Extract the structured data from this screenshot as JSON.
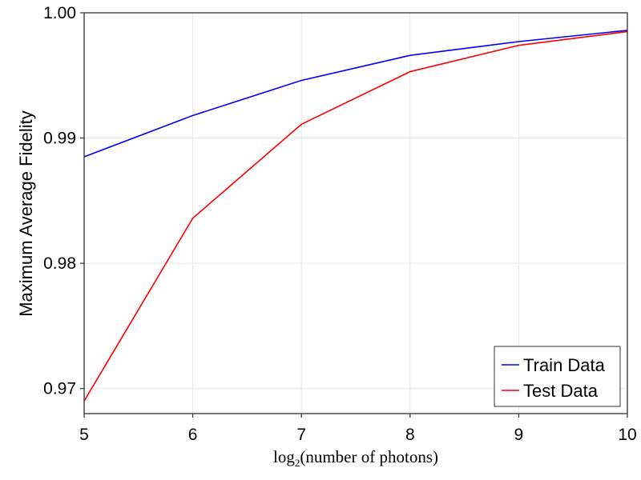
{
  "chart_data": {
    "type": "line",
    "x": [
      5,
      6,
      7,
      8,
      9,
      10
    ],
    "series": [
      {
        "name": "Train Data",
        "color": "#0000ff",
        "values": [
          0.9885,
          0.9918,
          0.9946,
          0.9966,
          0.9977,
          0.9986
        ]
      },
      {
        "name": "Test Data",
        "color": "#ff0000",
        "values": [
          0.969,
          0.9836,
          0.9911,
          0.9953,
          0.9974,
          0.9985
        ]
      }
    ],
    "title": "",
    "ylabel": "Maximum Average Fidelity",
    "xlabel": {
      "prefix": "log",
      "subscript": "2",
      "suffix": "(number of photons)"
    },
    "xlim": [
      5,
      10
    ],
    "ylim": [
      0.968,
      1.0
    ],
    "xticks": [
      5,
      6,
      7,
      8,
      9,
      10
    ],
    "xtick_labels": [
      "5",
      "6",
      "7",
      "8",
      "9",
      "10"
    ],
    "yticks": [
      0.97,
      0.98,
      0.99,
      1.0
    ],
    "ytick_labels": [
      "0.97",
      "0.98",
      "0.99",
      "1.00"
    ],
    "grid": true,
    "legend_position": "bottom-right"
  }
}
